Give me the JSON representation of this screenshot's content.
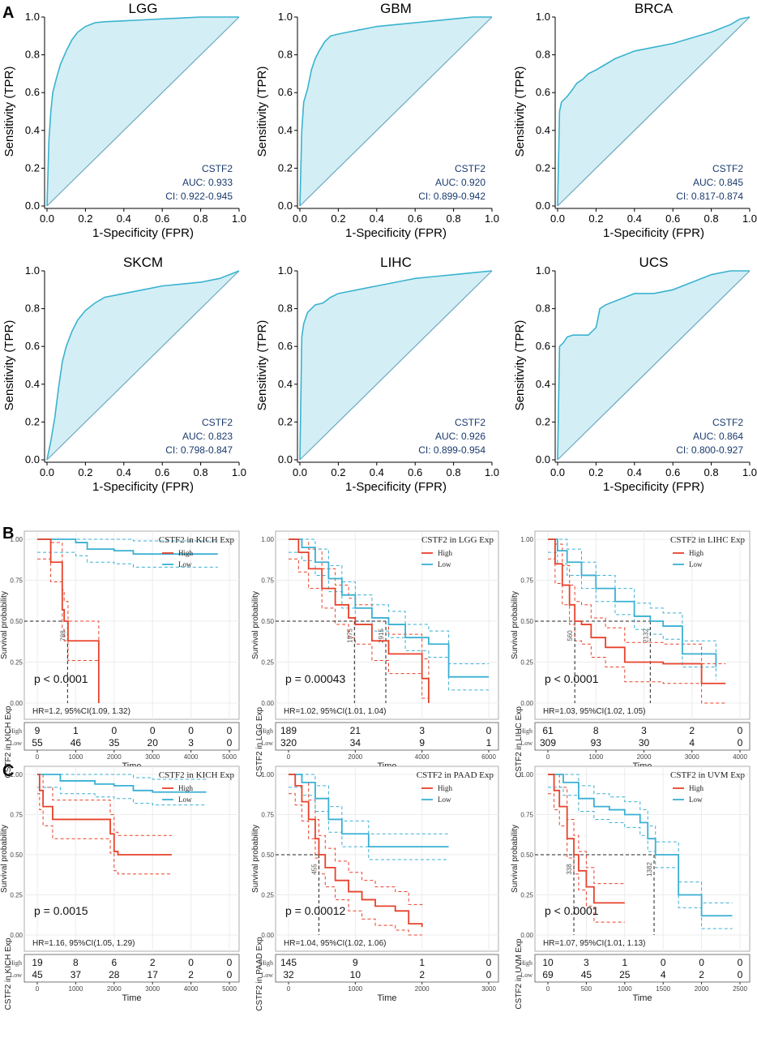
{
  "panel_labels": [
    "A",
    "B",
    "C"
  ],
  "colors": {
    "roc_line": "#3ab3cf",
    "roc_fill": "#d4eef5",
    "diag": "#6aa8c0",
    "high": "#e8422b",
    "low": "#3ab0d4",
    "annot": "#1a3a6e"
  },
  "chart_data": [
    {
      "type": "line",
      "kind": "roc",
      "title": "LGG",
      "xlabel": "1-Specificity (FPR)",
      "ylabel": "Sensitivity (TPR)",
      "xlim": [
        0,
        1
      ],
      "ylim": [
        0,
        1
      ],
      "ticks": [
        "0.0",
        "0.2",
        "0.4",
        "0.6",
        "0.8",
        "1.0"
      ],
      "gene": "CSTF2",
      "auc": "AUC: 0.933",
      "ci": "CI: 0.922-0.945",
      "x": [
        0,
        0.01,
        0.02,
        0.03,
        0.05,
        0.07,
        0.1,
        0.13,
        0.16,
        0.2,
        0.25,
        0.3,
        0.4,
        0.5,
        0.6,
        0.7,
        0.8,
        0.9,
        1.0
      ],
      "y": [
        0,
        0.35,
        0.5,
        0.6,
        0.68,
        0.75,
        0.82,
        0.88,
        0.92,
        0.95,
        0.97,
        0.975,
        0.98,
        0.985,
        0.99,
        0.995,
        1.0,
        1.0,
        1.0
      ]
    },
    {
      "type": "line",
      "kind": "roc",
      "title": "GBM",
      "xlabel": "1-Specificity (FPR)",
      "ylabel": "Sensitivity (TPR)",
      "xlim": [
        0,
        1
      ],
      "ylim": [
        0,
        1
      ],
      "ticks": [
        "0.0",
        "0.2",
        "0.4",
        "0.6",
        "0.8",
        "1.0"
      ],
      "gene": "CSTF2",
      "auc": "AUC: 0.920",
      "ci": "CI: 0.899-0.942",
      "x": [
        0,
        0.01,
        0.02,
        0.04,
        0.06,
        0.08,
        0.1,
        0.13,
        0.16,
        0.2,
        0.25,
        0.3,
        0.35,
        0.4,
        0.5,
        0.6,
        0.7,
        0.8,
        0.9,
        1.0
      ],
      "y": [
        0,
        0.4,
        0.55,
        0.62,
        0.72,
        0.78,
        0.82,
        0.87,
        0.9,
        0.91,
        0.92,
        0.93,
        0.94,
        0.95,
        0.96,
        0.97,
        0.98,
        0.99,
        1.0,
        1.0
      ]
    },
    {
      "type": "line",
      "kind": "roc",
      "title": "BRCA",
      "xlabel": "1-Specificity (FPR)",
      "ylabel": "Sensitivity (TPR)",
      "xlim": [
        0,
        1
      ],
      "ylim": [
        0,
        1
      ],
      "ticks": [
        "0.0",
        "0.2",
        "0.4",
        "0.6",
        "0.8",
        "1.0"
      ],
      "gene": "CSTF2",
      "auc": "AUC: 0.845",
      "ci": "CI: 0.817-0.874",
      "x": [
        0,
        0.01,
        0.02,
        0.05,
        0.08,
        0.1,
        0.13,
        0.16,
        0.2,
        0.25,
        0.3,
        0.35,
        0.4,
        0.5,
        0.6,
        0.7,
        0.8,
        0.9,
        0.95,
        1.0
      ],
      "y": [
        0,
        0.5,
        0.55,
        0.58,
        0.62,
        0.65,
        0.67,
        0.7,
        0.72,
        0.75,
        0.78,
        0.8,
        0.82,
        0.84,
        0.86,
        0.89,
        0.92,
        0.96,
        0.99,
        1.0
      ]
    },
    {
      "type": "line",
      "kind": "roc",
      "title": "SKCM",
      "xlabel": "1-Specificity (FPR)",
      "ylabel": "Sensitivity (TPR)",
      "xlim": [
        0,
        1
      ],
      "ylim": [
        0,
        1
      ],
      "ticks": [
        "0.0",
        "0.2",
        "0.4",
        "0.6",
        "0.8",
        "1.0"
      ],
      "gene": "CSTF2",
      "auc": "AUC: 0.823",
      "ci": "CI: 0.798-0.847",
      "x": [
        0,
        0.02,
        0.04,
        0.06,
        0.08,
        0.1,
        0.13,
        0.16,
        0.2,
        0.25,
        0.3,
        0.35,
        0.4,
        0.5,
        0.6,
        0.7,
        0.8,
        0.9,
        1.0
      ],
      "y": [
        0,
        0.1,
        0.22,
        0.38,
        0.52,
        0.6,
        0.68,
        0.74,
        0.79,
        0.83,
        0.86,
        0.87,
        0.88,
        0.9,
        0.92,
        0.93,
        0.94,
        0.96,
        1.0
      ]
    },
    {
      "type": "line",
      "kind": "roc",
      "title": "LIHC",
      "xlabel": "1-Specificity (FPR)",
      "ylabel": "Sensitivity (TPR)",
      "xlim": [
        0,
        1
      ],
      "ylim": [
        0,
        1
      ],
      "ticks": [
        "0.0",
        "0.2",
        "0.4",
        "0.6",
        "0.8",
        "1.0"
      ],
      "gene": "CSTF2",
      "auc": "AUC: 0.926",
      "ci": "CI: 0.899-0.954",
      "x": [
        0,
        0.01,
        0.02,
        0.04,
        0.06,
        0.08,
        0.12,
        0.16,
        0.2,
        0.25,
        0.3,
        0.35,
        0.4,
        0.5,
        0.6,
        0.7,
        0.8,
        0.9,
        1.0
      ],
      "y": [
        0,
        0.65,
        0.72,
        0.78,
        0.8,
        0.82,
        0.83,
        0.86,
        0.88,
        0.89,
        0.9,
        0.91,
        0.92,
        0.94,
        0.96,
        0.97,
        0.98,
        0.99,
        1.0
      ]
    },
    {
      "type": "line",
      "kind": "roc",
      "title": "UCS",
      "xlabel": "1-Specificity (FPR)",
      "ylabel": "Sensitivity (TPR)",
      "xlim": [
        0,
        1
      ],
      "ylim": [
        0,
        1
      ],
      "ticks": [
        "0.0",
        "0.2",
        "0.4",
        "0.6",
        "0.8",
        "1.0"
      ],
      "gene": "CSTF2",
      "auc": "AUC: 0.864",
      "ci": "CI: 0.800-0.927",
      "x": [
        0,
        0.01,
        0.03,
        0.05,
        0.08,
        0.12,
        0.16,
        0.2,
        0.22,
        0.25,
        0.3,
        0.35,
        0.4,
        0.5,
        0.6,
        0.7,
        0.8,
        0.9,
        1.0
      ],
      "y": [
        0,
        0.6,
        0.62,
        0.65,
        0.66,
        0.66,
        0.66,
        0.7,
        0.8,
        0.82,
        0.84,
        0.86,
        0.88,
        0.88,
        0.9,
        0.94,
        0.98,
        1.0,
        1.0
      ]
    },
    {
      "type": "line",
      "kind": "km",
      "title": "CSTF2 in KICH Exp",
      "legend": [
        "High",
        "Low"
      ],
      "ylabel": "Survival probability",
      "yticks": [
        "0.00",
        "0.25",
        "0.50",
        "0.75",
        "1.00"
      ],
      "xmax": 5000,
      "xticks": [
        "0",
        "1000",
        "2000",
        "3000",
        "4000",
        "5000"
      ],
      "xtick_values": [
        0,
        1000,
        2000,
        3000,
        4000,
        5000
      ],
      "pvalue": "p < 0.0001",
      "hr": "HR=1.2, 95%CI(1.09, 1.32)",
      "xlabel": "Time",
      "risk_ylabel": "CSTF2 in KICH Exp",
      "risk_labels": [
        "High",
        "Low"
      ],
      "risk_high": [
        "9",
        "1",
        "0",
        "0",
        "0",
        "0"
      ],
      "risk_low": [
        "55",
        "46",
        "35",
        "20",
        "3",
        "0"
      ],
      "medians": [
        {
          "x": 788,
          "label": "788"
        }
      ],
      "high": {
        "x": [
          0,
          200,
          350,
          650,
          700,
          800,
          1600
        ],
        "y": [
          1,
          1,
          0.86,
          0.57,
          0.5,
          0.38,
          0
        ]
      },
      "low": {
        "x": [
          0,
          1000,
          1300,
          2000,
          2500,
          4700
        ],
        "y": [
          1,
          0.98,
          0.94,
          0.93,
          0.91,
          0.91
        ]
      }
    },
    {
      "type": "line",
      "kind": "km",
      "title": "CSTF2 in LGG Exp",
      "legend": [
        "High",
        "Low"
      ],
      "ylabel": "Survival probability",
      "yticks": [
        "0.00",
        "0.25",
        "0.50",
        "0.75",
        "1.00"
      ],
      "xmax": 6000,
      "xticks": [
        "0",
        "2000",
        "4000",
        "6000"
      ],
      "xtick_values": [
        0,
        2000,
        4000,
        6000
      ],
      "pvalue": "p = 0.00043",
      "hr": "HR=1.02, 95%CI(1.01, 1.04)",
      "xlabel": "Time",
      "risk_ylabel": "CSTF2 in LGG Exp",
      "risk_labels": [
        "High",
        "Low"
      ],
      "risk_high": [
        "189",
        "21",
        "3",
        "0"
      ],
      "risk_low": [
        "320",
        "34",
        "9",
        "1"
      ],
      "medians": [
        {
          "x": 1975,
          "label": "1975"
        },
        {
          "x": 2915,
          "label": "2915"
        }
      ],
      "high": {
        "x": [
          0,
          300,
          600,
          1000,
          1400,
          1800,
          2000,
          2500,
          3000,
          3500,
          4000,
          4200
        ],
        "y": [
          1,
          0.92,
          0.82,
          0.7,
          0.6,
          0.52,
          0.48,
          0.38,
          0.3,
          0.3,
          0.15,
          0
        ]
      },
      "low": {
        "x": [
          0,
          400,
          800,
          1200,
          1600,
          2000,
          2500,
          3000,
          3500,
          4200,
          4800,
          5200,
          6000
        ],
        "y": [
          1,
          0.95,
          0.86,
          0.76,
          0.66,
          0.58,
          0.52,
          0.48,
          0.4,
          0.36,
          0.16,
          0.16,
          0.16
        ]
      }
    },
    {
      "type": "line",
      "kind": "km",
      "title": "CSTF2 in LIHC Exp",
      "legend": [
        "High",
        "Low"
      ],
      "ylabel": "Survival probability",
      "yticks": [
        "0.00",
        "0.25",
        "0.50",
        "0.75",
        "1.00"
      ],
      "xmax": 4000,
      "xticks": [
        "0",
        "1000",
        "2000",
        "3000",
        "4000"
      ],
      "xtick_values": [
        0,
        1000,
        2000,
        3000,
        4000
      ],
      "pvalue": "p < 0.0001",
      "hr": "HR=1.03, 95%CI(1.02, 1.05)",
      "xlabel": "Time",
      "risk_ylabel": "CSTF2 in LIHC Exp",
      "risk_labels": [
        "High",
        "Low"
      ],
      "risk_high": [
        "61",
        "8",
        "3",
        "2",
        "0"
      ],
      "risk_low": [
        "309",
        "93",
        "30",
        "4",
        "0"
      ],
      "medians": [
        {
          "x": 560,
          "label": "560"
        },
        {
          "x": 2132,
          "label": "2132"
        }
      ],
      "high": {
        "x": [
          0,
          150,
          300,
          450,
          560,
          700,
          900,
          1200,
          1400,
          1600,
          2000,
          2400,
          3100,
          3200,
          3700
        ],
        "y": [
          1,
          0.85,
          0.72,
          0.6,
          0.5,
          0.48,
          0.4,
          0.34,
          0.34,
          0.25,
          0.25,
          0.24,
          0.24,
          0.12,
          0.12
        ]
      },
      "low": {
        "x": [
          0,
          200,
          400,
          700,
          1000,
          1400,
          1800,
          2132,
          2400,
          2600,
          2800,
          3000,
          3200,
          3500
        ],
        "y": [
          1,
          0.93,
          0.86,
          0.78,
          0.7,
          0.62,
          0.53,
          0.5,
          0.47,
          0.47,
          0.3,
          0.3,
          0.3,
          0.22
        ]
      }
    },
    {
      "type": "line",
      "kind": "km",
      "title": "CSTF2 in KICH Exp",
      "legend": [
        "High",
        "Low"
      ],
      "ylabel": "Survival probability",
      "yticks": [
        "0.00",
        "0.25",
        "0.50",
        "0.75",
        "1.00"
      ],
      "xmax": 5000,
      "xticks": [
        "0",
        "1000",
        "2000",
        "3000",
        "4000",
        "5000"
      ],
      "xtick_values": [
        0,
        1000,
        2000,
        3000,
        4000,
        5000
      ],
      "pvalue": "p = 0.0015",
      "hr": "HR=1.16, 95%CI(1.05, 1.29)",
      "xlabel": "Time",
      "risk_ylabel": "CSTF2 in KICH Exp",
      "risk_labels": [
        "High",
        "Low"
      ],
      "risk_high": [
        "19",
        "8",
        "6",
        "2",
        "0",
        "0"
      ],
      "risk_low": [
        "45",
        "37",
        "28",
        "17",
        "2",
        "0"
      ],
      "medians": [],
      "high": {
        "x": [
          0,
          60,
          150,
          400,
          1000,
          1500,
          1900,
          2000,
          2100,
          3500
        ],
        "y": [
          1,
          0.9,
          0.8,
          0.72,
          0.72,
          0.72,
          0.63,
          0.52,
          0.5,
          0.5
        ]
      },
      "low": {
        "x": [
          0,
          600,
          1500,
          2000,
          2500,
          3000,
          3500,
          4000,
          4400
        ],
        "y": [
          1,
          0.96,
          0.94,
          0.93,
          0.9,
          0.89,
          0.89,
          0.89,
          0.89
        ]
      }
    },
    {
      "type": "line",
      "kind": "km",
      "title": "CSTF2 in PAAD Exp",
      "legend": [
        "High",
        "Low"
      ],
      "ylabel": "Survival probability",
      "yticks": [
        "0.00",
        "0.25",
        "0.50",
        "0.75",
        "1.00"
      ],
      "xmax": 3000,
      "xticks": [
        "0",
        "1000",
        "2000",
        "3000"
      ],
      "xtick_values": [
        0,
        1000,
        2000,
        3000
      ],
      "pvalue": "p = 0.00012",
      "hr": "HR=1.04, 95%CI(1.02, 1.06)",
      "xlabel": "Time",
      "risk_ylabel": "CSTF2 in PAAD Exp",
      "risk_labels": [
        "High",
        "Low"
      ],
      "risk_high": [
        "145",
        "9",
        "1",
        "0"
      ],
      "risk_low": [
        "32",
        "10",
        "2",
        "0"
      ],
      "medians": [
        {
          "x": 455,
          "label": "455"
        }
      ],
      "high": {
        "x": [
          0,
          100,
          200,
          300,
          400,
          455,
          550,
          700,
          900,
          1100,
          1300,
          1600,
          1800,
          2000
        ],
        "y": [
          1,
          0.93,
          0.83,
          0.72,
          0.6,
          0.5,
          0.42,
          0.34,
          0.27,
          0.22,
          0.18,
          0.15,
          0.07,
          0.05
        ]
      },
      "low": {
        "x": [
          0,
          200,
          400,
          600,
          800,
          1000,
          1200,
          2000,
          2400
        ],
        "y": [
          1,
          0.95,
          0.85,
          0.72,
          0.63,
          0.63,
          0.55,
          0.55,
          0.55
        ]
      }
    },
    {
      "type": "line",
      "kind": "km",
      "title": "CSTF2 in UVM Exp",
      "legend": [
        "High",
        "Low"
      ],
      "ylabel": "Survival probability",
      "yticks": [
        "0.00",
        "0.25",
        "0.50",
        "0.75",
        "1.00"
      ],
      "xmax": 2500,
      "xticks": [
        "0",
        "500",
        "1000",
        "1500",
        "2000",
        "2500"
      ],
      "xtick_values": [
        0,
        500,
        1000,
        1500,
        2000,
        2500
      ],
      "pvalue": "p < 0.0001",
      "hr": "HR=1.07, 95%CI(1.01, 1.13)",
      "xlabel": "Time",
      "risk_ylabel": "CSTF2 in UVM Exp",
      "risk_labels": [
        "High",
        "Low"
      ],
      "risk_high": [
        "10",
        "3",
        "1",
        "0",
        "0",
        "0"
      ],
      "risk_low": [
        "69",
        "45",
        "25",
        "4",
        "2",
        "0"
      ],
      "medians": [
        {
          "x": 338,
          "label": "338"
        },
        {
          "x": 1382,
          "label": "1382"
        }
      ],
      "high": {
        "x": [
          0,
          80,
          150,
          250,
          338,
          400,
          500,
          600,
          1000
        ],
        "y": [
          1,
          0.9,
          0.8,
          0.6,
          0.5,
          0.4,
          0.3,
          0.2,
          0.2
        ]
      },
      "low": {
        "x": [
          0,
          200,
          400,
          600,
          800,
          1000,
          1200,
          1300,
          1400,
          1500,
          1700,
          2000,
          2400
        ],
        "y": [
          1,
          0.95,
          0.85,
          0.8,
          0.78,
          0.75,
          0.7,
          0.6,
          0.5,
          0.5,
          0.25,
          0.12,
          0.12
        ]
      }
    }
  ]
}
